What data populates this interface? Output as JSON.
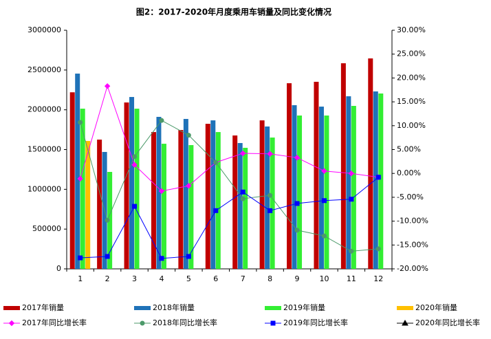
{
  "chart_data": {
    "type": "combo",
    "title": "图2：2017-2020年月度乘用车销量及同比变化情况",
    "categories": [
      "1",
      "2",
      "3",
      "4",
      "5",
      "6",
      "7",
      "8",
      "9",
      "10",
      "11",
      "12"
    ],
    "ylim": [
      0,
      3000000
    ],
    "yticks": [
      0,
      500000,
      1000000,
      1500000,
      2000000,
      2500000,
      3000000
    ],
    "y2lim": [
      -20,
      30
    ],
    "y2ticks": [
      {
        "value": -20,
        "label": "-20.00%"
      },
      {
        "value": -15,
        "label": "-15.00%"
      },
      {
        "value": -10,
        "label": "-10.00%"
      },
      {
        "value": -5,
        "label": "-5.00%"
      },
      {
        "value": 0,
        "label": "0.00%"
      },
      {
        "value": 5,
        "label": "5.00%"
      },
      {
        "value": 10,
        "label": "10.00%"
      },
      {
        "value": 15,
        "label": "15.00%"
      },
      {
        "value": 20,
        "label": "20.00%"
      },
      {
        "value": 25,
        "label": "25.00%"
      },
      {
        "value": 30,
        "label": "30.00%"
      }
    ],
    "series": [
      {
        "name": "2017年销量",
        "type": "bar",
        "color": "#C00000",
        "values": [
          2220000,
          1625000,
          2092000,
          1720000,
          1746000,
          1824000,
          1677000,
          1867000,
          2334000,
          2352000,
          2585000,
          2646000
        ]
      },
      {
        "name": "2018年销量",
        "type": "bar",
        "color": "#1F72B8",
        "values": [
          2455000,
          1470000,
          2161000,
          1911000,
          1885000,
          1867000,
          1582000,
          1790000,
          2058000,
          2040000,
          2170000,
          2231000
        ]
      },
      {
        "name": "2019年销量",
        "type": "bar",
        "color": "#33EE33",
        "values": [
          2014000,
          1219000,
          2014000,
          1573000,
          1556000,
          1720000,
          1522000,
          1651000,
          1928000,
          1928000,
          2049000,
          2205000
        ]
      },
      {
        "name": "2020年销量",
        "type": "bar",
        "color": "#FFC000",
        "values": [
          1608000,
          null,
          null,
          null,
          null,
          null,
          null,
          null,
          null,
          null,
          null,
          null
        ]
      },
      {
        "name": "2017年同比增长率",
        "type": "line",
        "axis": "y2",
        "marker": "diamond",
        "color": "#FF00FF",
        "values": [
          -1.1,
          18.3,
          1.8,
          -3.7,
          -2.6,
          2.3,
          4.2,
          4.1,
          3.3,
          0.5,
          0.0,
          -0.8
        ]
      },
      {
        "name": "2018年同比增长率",
        "type": "line",
        "axis": "y2",
        "marker": "circle",
        "color": "#4C9A6A",
        "values": [
          10.7,
          -9.8,
          3.5,
          11.1,
          8.0,
          2.3,
          -5.3,
          -4.6,
          -11.9,
          -13.1,
          -16.3,
          -15.8
        ]
      },
      {
        "name": "2019年同比增长率",
        "type": "line",
        "axis": "y2",
        "marker": "square",
        "color": "#0000FF",
        "values": [
          -17.7,
          -17.4,
          -6.9,
          -17.8,
          -17.4,
          -7.8,
          -3.9,
          -7.8,
          -6.3,
          -5.7,
          -5.4,
          -0.8
        ]
      },
      {
        "name": "2020年同比增长率",
        "type": "line",
        "axis": "y2",
        "marker": "triangle",
        "color": "#000000",
        "values": [
          null,
          null,
          null,
          null,
          null,
          null,
          null,
          null,
          null,
          null,
          null,
          null
        ]
      }
    ]
  }
}
